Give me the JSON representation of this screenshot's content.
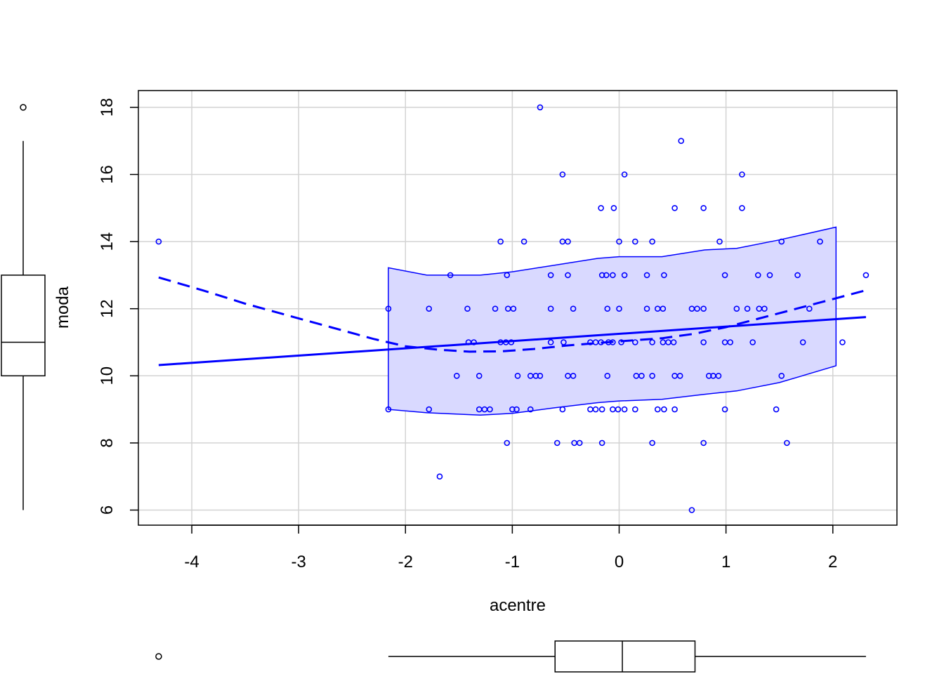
{
  "chart_data": {
    "type": "scatter",
    "xlabel": "acentre",
    "ylabel": "moda",
    "xlim": [
      -4.5,
      2.6
    ],
    "ylim": [
      5.55,
      18.5
    ],
    "x_ticks": [
      -4,
      -3,
      -2,
      -1,
      0,
      1,
      2
    ],
    "y_ticks": [
      6,
      8,
      10,
      12,
      14,
      16,
      18
    ],
    "grid": true,
    "colors": {
      "points": "#0000ff",
      "band_fill": "#d9d9ff",
      "box": "#000000",
      "grid": "#d3d3d3"
    },
    "points": [
      [
        -4.31,
        14
      ],
      [
        -2.16,
        12
      ],
      [
        -2.16,
        9
      ],
      [
        -1.78,
        12
      ],
      [
        -1.78,
        9
      ],
      [
        -1.68,
        7
      ],
      [
        -1.58,
        13
      ],
      [
        -1.52,
        10
      ],
      [
        -1.42,
        12
      ],
      [
        -1.41,
        11
      ],
      [
        -1.36,
        11
      ],
      [
        -1.31,
        10
      ],
      [
        -1.31,
        9
      ],
      [
        -1.26,
        9
      ],
      [
        -1.21,
        9
      ],
      [
        -1.16,
        12
      ],
      [
        -1.11,
        14
      ],
      [
        -1.11,
        11
      ],
      [
        -1.06,
        11
      ],
      [
        -1.05,
        8
      ],
      [
        -1.05,
        13
      ],
      [
        -1.04,
        12
      ],
      [
        -1.01,
        11
      ],
      [
        -0.99,
        12
      ],
      [
        -1.0,
        9
      ],
      [
        -0.96,
        9
      ],
      [
        -0.95,
        10
      ],
      [
        -0.89,
        14
      ],
      [
        -0.83,
        9
      ],
      [
        -0.83,
        10
      ],
      [
        -0.78,
        10
      ],
      [
        -0.74,
        10
      ],
      [
        -0.74,
        18
      ],
      [
        -0.64,
        12
      ],
      [
        -0.64,
        11
      ],
      [
        -0.64,
        13
      ],
      [
        -0.58,
        8
      ],
      [
        -0.53,
        16
      ],
      [
        -0.53,
        14
      ],
      [
        -0.53,
        9
      ],
      [
        -0.52,
        11
      ],
      [
        -0.48,
        14
      ],
      [
        -0.48,
        13
      ],
      [
        -0.48,
        10
      ],
      [
        -0.43,
        10
      ],
      [
        -0.43,
        12
      ],
      [
        -0.42,
        8
      ],
      [
        -0.37,
        8
      ],
      [
        -0.27,
        11
      ],
      [
        -0.27,
        9
      ],
      [
        -0.22,
        11
      ],
      [
        -0.22,
        9
      ],
      [
        -0.17,
        11
      ],
      [
        -0.17,
        15
      ],
      [
        -0.16,
        9
      ],
      [
        -0.16,
        13
      ],
      [
        -0.16,
        8
      ],
      [
        -0.12,
        13
      ],
      [
        -0.11,
        12
      ],
      [
        -0.11,
        10
      ],
      [
        -0.1,
        11
      ],
      [
        -0.06,
        13
      ],
      [
        -0.06,
        11
      ],
      [
        -0.06,
        9
      ],
      [
        -0.05,
        15
      ],
      [
        -0.01,
        9
      ],
      [
        0.0,
        12
      ],
      [
        0.0,
        14
      ],
      [
        0.02,
        11
      ],
      [
        0.05,
        9
      ],
      [
        0.05,
        13
      ],
      [
        0.05,
        16
      ],
      [
        0.15,
        14
      ],
      [
        0.15,
        11
      ],
      [
        0.15,
        9
      ],
      [
        0.16,
        10
      ],
      [
        0.21,
        10
      ],
      [
        0.26,
        13
      ],
      [
        0.26,
        12
      ],
      [
        0.31,
        14
      ],
      [
        0.31,
        11
      ],
      [
        0.31,
        10
      ],
      [
        0.31,
        8
      ],
      [
        0.36,
        12
      ],
      [
        0.36,
        9
      ],
      [
        0.41,
        11
      ],
      [
        0.41,
        12
      ],
      [
        0.42,
        13
      ],
      [
        0.42,
        9
      ],
      [
        0.46,
        11
      ],
      [
        0.51,
        11
      ],
      [
        0.52,
        15
      ],
      [
        0.52,
        9
      ],
      [
        0.52,
        10
      ],
      [
        0.57,
        10
      ],
      [
        0.58,
        17
      ],
      [
        0.68,
        6
      ],
      [
        0.68,
        12
      ],
      [
        0.73,
        12
      ],
      [
        0.79,
        15
      ],
      [
        0.79,
        12
      ],
      [
        0.79,
        11
      ],
      [
        0.79,
        8
      ],
      [
        0.84,
        10
      ],
      [
        0.88,
        10
      ],
      [
        0.93,
        10
      ],
      [
        0.94,
        14
      ],
      [
        0.99,
        13
      ],
      [
        0.99,
        11
      ],
      [
        0.99,
        9
      ],
      [
        1.04,
        11
      ],
      [
        1.1,
        12
      ],
      [
        1.15,
        16
      ],
      [
        1.15,
        15
      ],
      [
        1.2,
        12
      ],
      [
        1.25,
        11
      ],
      [
        1.3,
        13
      ],
      [
        1.31,
        12
      ],
      [
        1.36,
        12
      ],
      [
        1.41,
        13
      ],
      [
        1.47,
        9
      ],
      [
        1.52,
        14
      ],
      [
        1.52,
        10
      ],
      [
        1.57,
        8
      ],
      [
        1.67,
        13
      ],
      [
        1.72,
        11
      ],
      [
        1.78,
        12
      ],
      [
        1.88,
        14
      ],
      [
        2.09,
        11
      ],
      [
        2.31,
        13
      ]
    ],
    "linear_fit": {
      "x": [
        -4.31,
        2.31
      ],
      "y": [
        10.32,
        11.75
      ]
    },
    "smooth_fit": {
      "x": [
        -4.31,
        -3.9,
        -3.5,
        -3.1,
        -2.7,
        -2.3,
        -2.0,
        -1.7,
        -1.4,
        -1.1,
        -0.8,
        -0.5,
        -0.2,
        0.1,
        0.4,
        0.7,
        1.0,
        1.3,
        1.6,
        1.9,
        2.31
      ],
      "y": [
        12.93,
        12.55,
        12.15,
        11.8,
        11.45,
        11.1,
        10.88,
        10.78,
        10.72,
        10.73,
        10.8,
        10.9,
        10.98,
        11.05,
        11.12,
        11.25,
        11.45,
        11.7,
        11.95,
        12.2,
        12.55
      ]
    },
    "confidence_band": {
      "x": [
        -2.16,
        -1.8,
        -1.3,
        -1.0,
        -0.6,
        -0.2,
        0.0,
        0.4,
        0.8,
        1.1,
        1.5,
        2.03
      ],
      "upper": [
        13.22,
        13.0,
        13.0,
        13.1,
        13.3,
        13.5,
        13.55,
        13.55,
        13.75,
        13.8,
        14.05,
        14.43
      ],
      "lower": [
        9.0,
        8.9,
        8.83,
        8.88,
        9.05,
        9.2,
        9.25,
        9.3,
        9.45,
        9.55,
        9.8,
        10.3
      ]
    },
    "x_boxplot": {
      "min": -2.16,
      "q1": -0.6,
      "median": 0.03,
      "q3": 0.71,
      "max": 2.31,
      "outliers": [
        -4.31
      ]
    },
    "y_boxplot": {
      "min": 6,
      "q1": 10,
      "median": 11,
      "q3": 13,
      "max": 17,
      "outliers": [
        18
      ]
    }
  }
}
